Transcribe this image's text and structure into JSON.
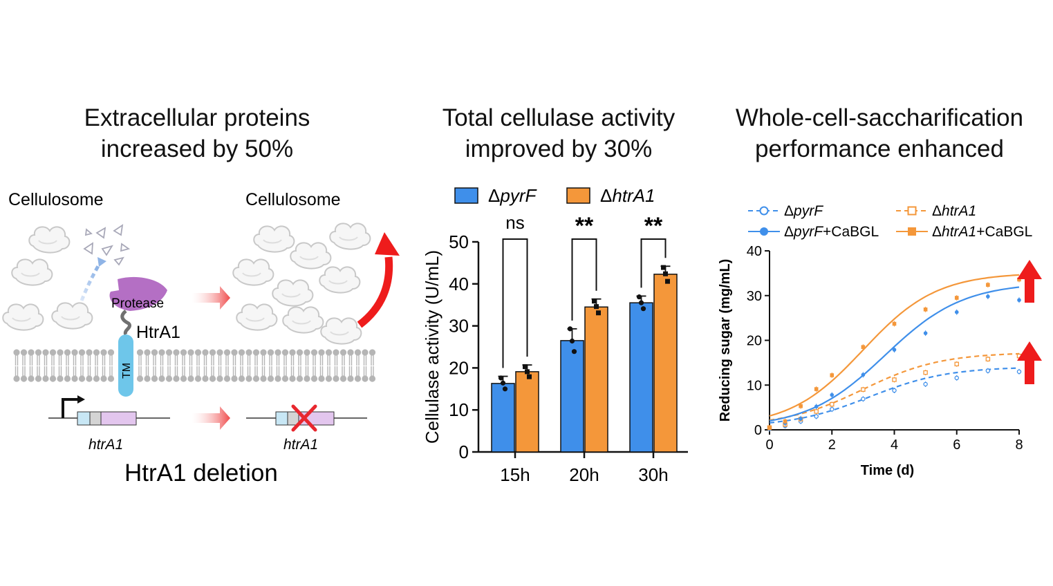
{
  "panels": {
    "left": {
      "title_line1": "Extracellular proteins",
      "title_line2": "increased by 50%",
      "cellulosome_left": "Cellulosome",
      "cellulosome_right": "Cellulosome",
      "protease_label": "Protease",
      "htra1_label": "HtrA1",
      "tm_label": "TM",
      "gene_left": "htrA1",
      "gene_right": "htrA1",
      "bottom_caption": "HtrA1 deletion"
    },
    "middle": {
      "title_line1": "Total cellulase activity",
      "title_line2": "improved by 30%"
    },
    "right": {
      "title_line1": "Whole-cell-saccharification",
      "title_line2": "performance enhanced"
    }
  },
  "colors": {
    "blue": "#3f8fea",
    "orange": "#f4973a",
    "protease": "#b46fc4",
    "membrane": "#b5b5b5",
    "tm": "#6ec6ea",
    "arrow_red": "#ee1c1c"
  },
  "chart_data": [
    {
      "type": "bar",
      "categories": [
        "15h",
        "20h",
        "30h"
      ],
      "series": [
        {
          "name_prefix": "Δ",
          "name_italic": "pyrF",
          "name": "ΔpyrF",
          "color": "#3f8fea",
          "values": [
            16.3,
            26.5,
            35.5
          ],
          "errors": [
            1.7,
            2.8,
            1.6
          ],
          "points": [
            [
              17.6,
              15.0,
              16.4
            ],
            [
              29.3,
              23.9,
              26.4
            ],
            [
              36.9,
              34.1,
              35.5
            ]
          ]
        },
        {
          "name_prefix": "Δ",
          "name_italic": "htrA1",
          "name": "ΔhtrA1",
          "color": "#f4973a",
          "values": [
            19.1,
            34.5,
            42.3
          ],
          "errors": [
            1.6,
            1.9,
            1.9
          ],
          "points": [
            [
              20.3,
              17.9,
              19.1
            ],
            [
              35.9,
              33.1,
              34.6
            ],
            [
              43.9,
              40.6,
              42.4
            ]
          ]
        }
      ],
      "significance": [
        "ns",
        "**",
        "**"
      ],
      "ylabel": "Cellulase activity (U/mL)",
      "ylim": [
        0,
        50
      ],
      "yticks": [
        0,
        10,
        20,
        30,
        40,
        50
      ],
      "legend": "top"
    },
    {
      "type": "line",
      "xlabel": "Time (d)",
      "ylabel": "Reducing sugar (mg/mL)",
      "xlim": [
        0,
        8
      ],
      "ylim": [
        0,
        40
      ],
      "xticks": [
        0,
        2,
        4,
        6,
        8
      ],
      "yticks": [
        0,
        10,
        20,
        30,
        40
      ],
      "x": [
        0,
        0.5,
        1,
        1.5,
        2,
        3,
        4,
        5,
        6,
        7,
        8
      ],
      "series": [
        {
          "name_prefix": "Δ",
          "name_italic": "pyrF",
          "name_suffix": "",
          "name": "ΔpyrF",
          "color": "#3f8fea",
          "marker": "open-circle",
          "dashed": true,
          "values": [
            0.3,
            0.9,
            1.9,
            3.0,
            4.6,
            6.9,
            8.8,
            10.2,
            11.6,
            13.2,
            13.0
          ],
          "fit": {
            "A": 13.5,
            "x0": 3.2,
            "k": 0.8,
            "b": 0.6
          }
        },
        {
          "name_prefix": "Δ",
          "name_italic": "htrA1",
          "name_suffix": "",
          "name": "ΔhtrA1",
          "color": "#f4973a",
          "marker": "open-square",
          "dashed": true,
          "values": [
            0.5,
            1.2,
            2.4,
            4.1,
            5.7,
            9.0,
            11.2,
            12.8,
            14.7,
            15.8,
            16.5
          ],
          "fit": {
            "A": 16.5,
            "x0": 3.0,
            "k": 0.8,
            "b": 0.8
          }
        },
        {
          "name_prefix": "Δ",
          "name_italic": "pyrF",
          "name_suffix": "+CaBGL",
          "name": "ΔpyrF+CaBGL",
          "color": "#3f8fea",
          "marker": "filled-circle",
          "dashed": false,
          "values": [
            0.2,
            1.5,
            2.5,
            5.2,
            7.8,
            12.3,
            17.9,
            21.6,
            26.3,
            29.8,
            29.0
          ],
          "fit": {
            "A": 32.5,
            "x0": 3.7,
            "k": 0.8,
            "b": 0.4
          }
        },
        {
          "name_prefix": "Δ",
          "name_italic": "htrA1",
          "name_suffix": "+CaBGL",
          "name": "ΔhtrA1+CaBGL",
          "color": "#f4973a",
          "marker": "filled-square",
          "dashed": false,
          "values": [
            0.4,
            1.9,
            5.3,
            9.1,
            12.2,
            18.5,
            23.7,
            26.9,
            29.5,
            32.4,
            33.6
          ],
          "fit": {
            "A": 34.5,
            "x0": 3.0,
            "k": 0.85,
            "b": 0.6
          }
        }
      ],
      "legend": "top"
    }
  ]
}
